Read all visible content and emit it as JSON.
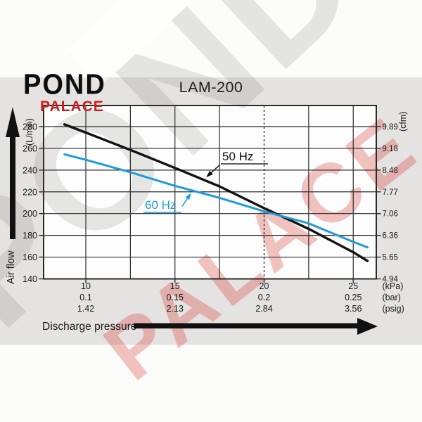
{
  "logo": {
    "top": "POND",
    "bottom": "PALACE"
  },
  "title": "LAM-200",
  "watermarks": {
    "gray": "POND",
    "red": "PALACE"
  },
  "colors": {
    "curve_50hz": "#111111",
    "curve_60hz": "#1e9cd7",
    "logo_red": "#cf1d1d",
    "band_gray": "#e4e3e1",
    "grid_line": "#2b2b2b"
  },
  "left_axis": {
    "unit": "(L/min)",
    "arrow_label": "Air flow"
  },
  "right_axis": {
    "unit": "(cfm)"
  },
  "bottom_axis": {
    "label": "Discharge pressure"
  },
  "series_labels": {
    "s50": "50 Hz",
    "s60": "60 Hz"
  },
  "chart_data": {
    "type": "line",
    "title": "LAM-200",
    "xlabel": "Discharge pressure",
    "ylabel": "Air flow",
    "grid": "on",
    "legend_position": "inline-annotations",
    "x_axis": {
      "units": [
        "kPa",
        "bar",
        "psig"
      ],
      "ticks_kpa": [
        "10",
        "15",
        "20",
        "25"
      ],
      "ticks_bar": [
        "0.1",
        "0.15",
        "0.2",
        "0.25"
      ],
      "ticks_psig": [
        "1.42",
        "2.13",
        "2.84",
        "3.56"
      ],
      "unit_labels": [
        "(kPa)",
        "(bar)",
        "(psig)"
      ],
      "range_kpa": [
        7.6,
        26.3
      ],
      "grid_step_kpa": 2.5,
      "dashed_gridline_kpa": 20
    },
    "y_axis": {
      "units": [
        "L/min",
        "cfm"
      ],
      "ticks_lmin": [
        "280",
        "260",
        "240",
        "220",
        "200",
        "180",
        "160",
        "140"
      ],
      "ticks_cfm": [
        "9.89",
        "9.18",
        "8.48",
        "7.77",
        "7.06",
        "6.36",
        "5.65",
        "4.94"
      ],
      "range_lmin": [
        140,
        299
      ],
      "grid_step_lmin": 20
    },
    "series": [
      {
        "name": "50 Hz",
        "color": "#111111",
        "x_kpa": [
          8.8,
          10,
          12.5,
          15,
          17.5,
          20,
          22.5,
          25,
          25.8
        ],
        "y_lmin": [
          282,
          274.5,
          258.5,
          242,
          225,
          205,
          186,
          164.5,
          156.5
        ]
      },
      {
        "name": "60 Hz",
        "color": "#1e9cd7",
        "x_kpa": [
          8.8,
          10,
          12.5,
          15,
          17.5,
          20,
          22.5,
          25,
          25.8
        ],
        "y_lmin": [
          254.5,
          249.5,
          238,
          225.5,
          214.5,
          202,
          191,
          174,
          169
        ]
      }
    ]
  }
}
